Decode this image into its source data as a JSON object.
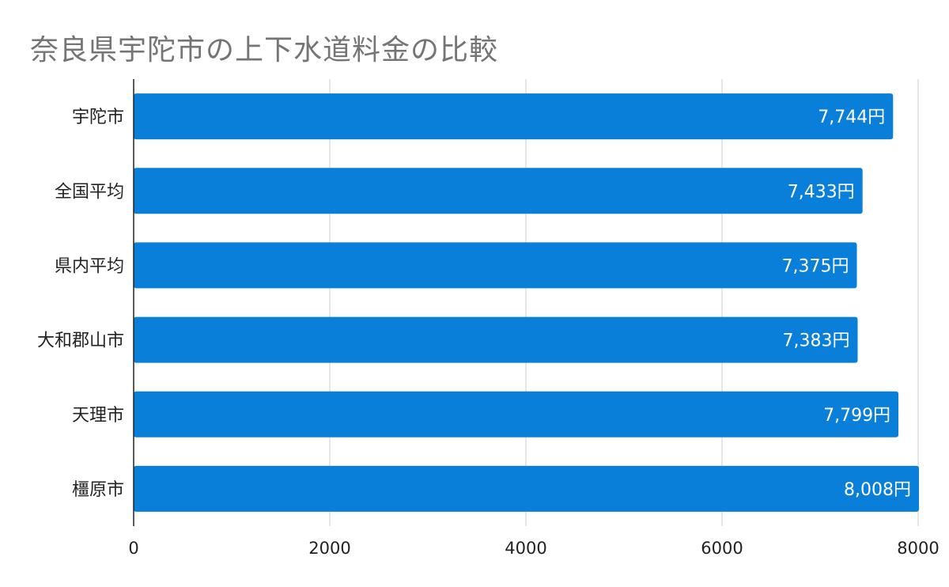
{
  "chart_data": {
    "type": "bar",
    "orientation": "horizontal",
    "title": "奈良県宇陀市の上下水道料金の比較",
    "categories": [
      "宇陀市",
      "全国平均",
      "県内平均",
      "大和郡山市",
      "天理市",
      "橿原市"
    ],
    "values": [
      7744,
      7433,
      7375,
      7383,
      7799,
      8008
    ],
    "data_labels": [
      "7,744円",
      "7,433円",
      "7,375円",
      "7,383円",
      "7,799円",
      "8,008円"
    ],
    "xlim": [
      0,
      8000
    ],
    "xticks": [
      "0",
      "2000",
      "4000",
      "6000",
      "8000"
    ],
    "xlabel": "",
    "ylabel": "",
    "grid": true,
    "legend": "none",
    "bar_color": "#0a7fd9"
  }
}
